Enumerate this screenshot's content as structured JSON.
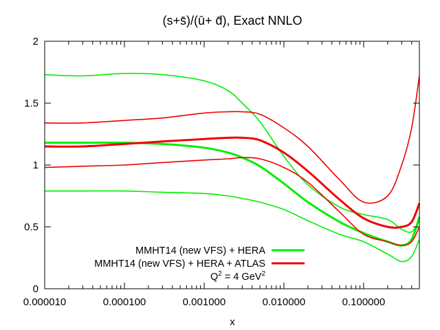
{
  "chart_data": {
    "type": "line",
    "title": "(s+s̄)/(ū+ d̄), Exact NNLO",
    "xlabel": "x",
    "ylabel": "",
    "x_scale": "log",
    "xlim": [
      1e-05,
      0.5
    ],
    "ylim": [
      0,
      2
    ],
    "x_ticks": [
      {
        "value": 1e-05,
        "label": "0.000010"
      },
      {
        "value": 0.0001,
        "label": "0.000100"
      },
      {
        "value": 0.001,
        "label": "0.001000"
      },
      {
        "value": 0.01,
        "label": "0.010000"
      },
      {
        "value": 0.1,
        "label": "0.100000"
      }
    ],
    "y_ticks": [
      {
        "value": 0,
        "label": "0"
      },
      {
        "value": 0.5,
        "label": "0.5"
      },
      {
        "value": 1,
        "label": "1"
      },
      {
        "value": 1.5,
        "label": "1.5"
      },
      {
        "value": 2,
        "label": "2"
      }
    ],
    "grid": false,
    "legend_position": "bottom-left",
    "annotation": {
      "text": "Q",
      "sup1": "2",
      "mid": " = 4 GeV",
      "sup2": "2"
    },
    "series": [
      {
        "name": "MMHT14 (new VFS) + HERA",
        "role": "central",
        "color": "#00ee00",
        "x": [
          1e-05,
          3e-05,
          0.0001,
          0.0003,
          0.001,
          0.002,
          0.003,
          0.005,
          0.01,
          0.02,
          0.05,
          0.1,
          0.2,
          0.3,
          0.4,
          0.5
        ],
        "y": [
          1.18,
          1.18,
          1.18,
          1.17,
          1.14,
          1.1,
          1.06,
          0.99,
          0.85,
          0.7,
          0.54,
          0.45,
          0.38,
          0.35,
          0.4,
          0.58
        ]
      },
      {
        "name": "",
        "role": "upper band",
        "color": "#00ee00",
        "x": [
          1e-05,
          3e-05,
          0.0001,
          0.0003,
          0.001,
          0.002,
          0.003,
          0.005,
          0.01,
          0.02,
          0.05,
          0.1,
          0.2,
          0.3,
          0.4,
          0.5
        ],
        "y": [
          1.73,
          1.72,
          1.74,
          1.73,
          1.68,
          1.6,
          1.5,
          1.35,
          1.07,
          0.84,
          0.66,
          0.6,
          0.56,
          0.48,
          0.46,
          0.55
        ]
      },
      {
        "name": "",
        "role": "lower band",
        "color": "#00ee00",
        "x": [
          1e-05,
          3e-05,
          0.0001,
          0.0003,
          0.001,
          0.002,
          0.003,
          0.005,
          0.01,
          0.02,
          0.05,
          0.1,
          0.2,
          0.3,
          0.4,
          0.5
        ],
        "y": [
          0.79,
          0.79,
          0.79,
          0.78,
          0.77,
          0.75,
          0.73,
          0.7,
          0.64,
          0.55,
          0.44,
          0.38,
          0.28,
          0.22,
          0.26,
          0.4
        ]
      },
      {
        "name": "MMHT14 (new VFS) + HERA + ATLAS",
        "role": "central",
        "color": "#ee0000",
        "x": [
          1e-05,
          3e-05,
          0.0001,
          0.0003,
          0.001,
          0.002,
          0.003,
          0.005,
          0.01,
          0.02,
          0.05,
          0.1,
          0.2,
          0.3,
          0.4,
          0.5
        ],
        "y": [
          1.15,
          1.15,
          1.17,
          1.19,
          1.21,
          1.22,
          1.22,
          1.2,
          1.1,
          0.95,
          0.72,
          0.57,
          0.5,
          0.5,
          0.54,
          0.69
        ]
      },
      {
        "name": "",
        "role": "upper band",
        "color": "#ee0000",
        "x": [
          1e-05,
          3e-05,
          0.0001,
          0.0003,
          0.001,
          0.002,
          0.003,
          0.005,
          0.01,
          0.02,
          0.05,
          0.1,
          0.2,
          0.3,
          0.4,
          0.5
        ],
        "y": [
          1.34,
          1.34,
          1.36,
          1.38,
          1.42,
          1.43,
          1.43,
          1.41,
          1.3,
          1.15,
          0.88,
          0.7,
          0.75,
          1.0,
          1.3,
          1.72
        ]
      },
      {
        "name": "",
        "role": "lower band",
        "color": "#ee0000",
        "x": [
          1e-05,
          3e-05,
          0.0001,
          0.0003,
          0.001,
          0.002,
          0.003,
          0.005,
          0.01,
          0.02,
          0.05,
          0.1,
          0.2,
          0.3,
          0.4,
          0.5
        ],
        "y": [
          0.98,
          0.99,
          1.0,
          1.02,
          1.04,
          1.05,
          1.06,
          1.05,
          0.98,
          0.86,
          0.62,
          0.44,
          0.38,
          0.35,
          0.38,
          0.5
        ]
      }
    ]
  }
}
